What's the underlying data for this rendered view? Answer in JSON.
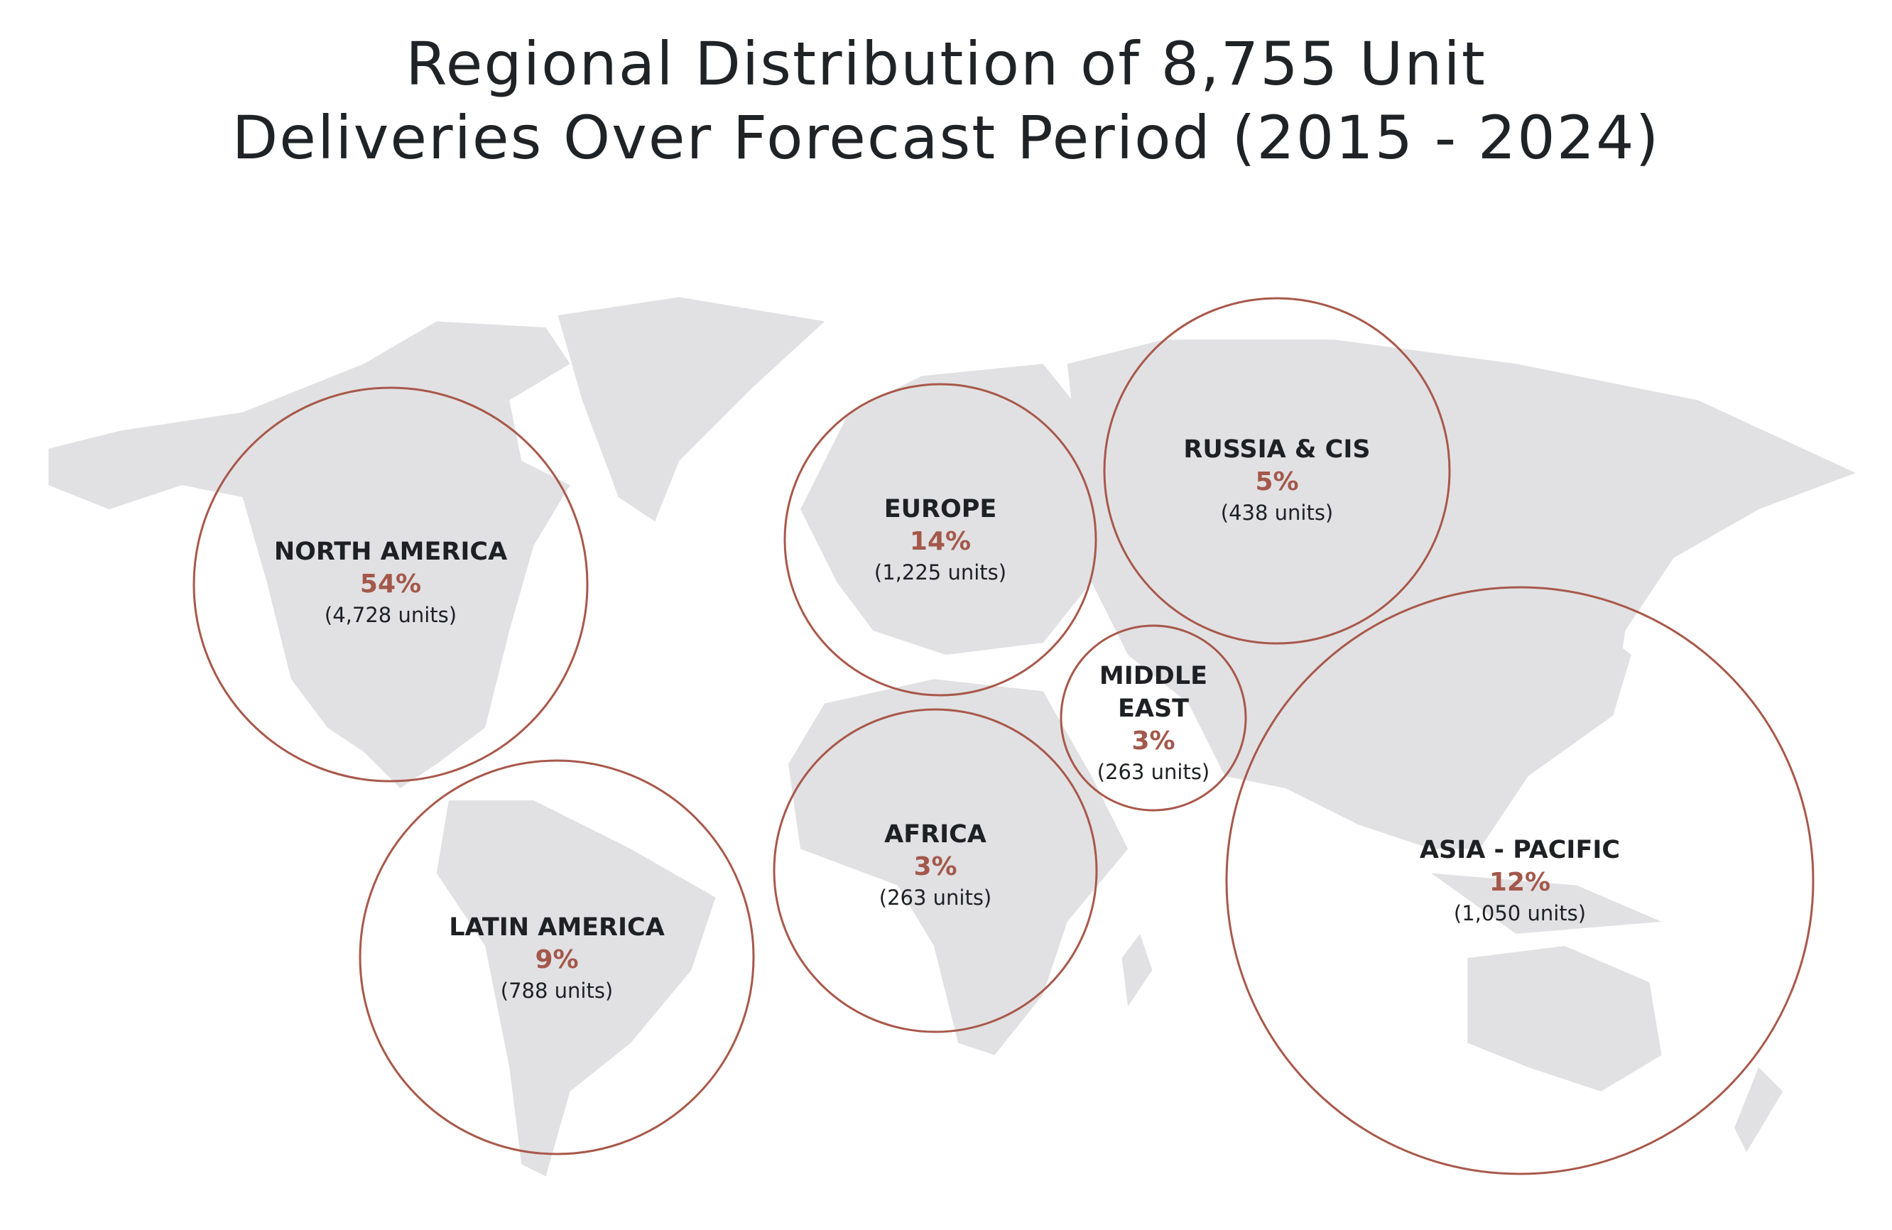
{
  "title_lines": [
    "Regional Distribution of 8,755 Unit",
    "Deliveries Over Forecast Period (2015 - 2024)"
  ],
  "regions": [
    {
      "name": "NORTH AMERICA",
      "share": "54%",
      "units": "(4,728 units)"
    },
    {
      "name": "EUROPE",
      "share": "14%",
      "units": "(1,225 units)"
    },
    {
      "name": "RUSSIA & CIS",
      "share": "5%",
      "units": "(438 units)"
    },
    {
      "name": "MIDDLE EAST",
      "share": "3%",
      "units": "(263 units)"
    },
    {
      "name": "AFRICA",
      "share": "3%",
      "units": "(263 units)"
    },
    {
      "name": "LATIN AMERICA",
      "share": "9%",
      "units": "(788 units)"
    },
    {
      "name": "ASIA - PACIFIC",
      "share": "12%",
      "units": "(1,050 units)"
    }
  ]
}
